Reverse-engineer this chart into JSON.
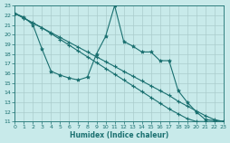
{
  "xlabel": "Humidex (Indice chaleur)",
  "bg_color": "#c8eaea",
  "grid_color": "#aacccc",
  "line_color": "#1a7070",
  "xmin": 0,
  "xmax": 23,
  "ymin": 11,
  "ymax": 23,
  "xticks": [
    0,
    1,
    2,
    3,
    4,
    5,
    6,
    7,
    8,
    9,
    10,
    11,
    12,
    13,
    14,
    15,
    16,
    17,
    18,
    19,
    20,
    21,
    22,
    23
  ],
  "yticks": [
    11,
    12,
    13,
    14,
    15,
    16,
    17,
    18,
    19,
    20,
    21,
    22,
    23
  ],
  "line_spike_x": [
    0,
    1,
    2,
    3,
    4,
    5,
    6,
    7,
    8,
    9,
    10,
    11,
    12,
    13,
    14,
    15,
    16,
    17,
    18,
    19,
    20,
    21,
    22,
    23
  ],
  "line_spike_y": [
    22.2,
    21.8,
    21.0,
    18.5,
    16.2,
    15.8,
    15.5,
    15.3,
    15.6,
    18.0,
    19.8,
    23.0,
    19.3,
    18.8,
    18.2,
    18.2,
    17.3,
    17.3,
    14.2,
    13.0,
    12.0,
    11.2,
    11.1,
    11.0
  ],
  "line_upper_x": [
    0,
    1,
    2,
    3,
    4,
    5,
    6,
    7,
    8,
    9,
    10,
    11,
    12,
    13,
    14,
    15,
    16,
    17,
    18,
    19,
    20,
    21,
    22,
    23
  ],
  "line_upper_y": [
    22.2,
    21.7,
    21.2,
    20.7,
    20.2,
    19.7,
    19.2,
    18.7,
    18.2,
    17.7,
    17.2,
    16.7,
    16.2,
    15.7,
    15.2,
    14.7,
    14.2,
    13.7,
    13.1,
    12.6,
    12.1,
    11.6,
    11.2,
    11.0
  ],
  "line_lower_x": [
    0,
    1,
    2,
    3,
    4,
    5,
    6,
    7,
    8,
    9,
    10,
    11,
    12,
    13,
    14,
    15,
    16,
    17,
    18,
    19,
    20,
    21,
    22,
    23
  ],
  "line_lower_y": [
    22.2,
    21.7,
    21.2,
    20.7,
    20.1,
    19.5,
    18.9,
    18.3,
    17.7,
    17.1,
    16.5,
    15.9,
    15.3,
    14.7,
    14.1,
    13.5,
    12.9,
    12.3,
    11.8,
    11.3,
    11.0,
    11.0,
    11.0,
    11.0
  ]
}
